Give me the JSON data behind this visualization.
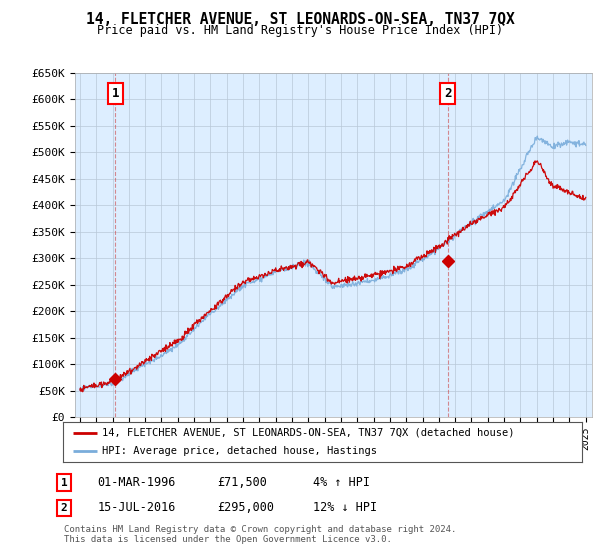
{
  "title": "14, FLETCHER AVENUE, ST LEONARDS-ON-SEA, TN37 7QX",
  "subtitle": "Price paid vs. HM Land Registry's House Price Index (HPI)",
  "ylim": [
    0,
    650000
  ],
  "yticks": [
    0,
    50000,
    100000,
    150000,
    200000,
    250000,
    300000,
    350000,
    400000,
    450000,
    500000,
    550000,
    600000,
    650000
  ],
  "ytick_labels": [
    "£0",
    "£50K",
    "£100K",
    "£150K",
    "£200K",
    "£250K",
    "£300K",
    "£350K",
    "£400K",
    "£450K",
    "£500K",
    "£550K",
    "£600K",
    "£650K"
  ],
  "sale1_x": 1996.17,
  "sale1_price": 71500,
  "sale1_label": "1",
  "sale1_date": "01-MAR-1996",
  "sale1_price_str": "£71,500",
  "sale1_hpi": "4% ↑ HPI",
  "sale2_x": 2016.54,
  "sale2_price": 295000,
  "sale2_label": "2",
  "sale2_date": "15-JUL-2016",
  "sale2_price_str": "£295,000",
  "sale2_hpi": "12% ↓ HPI",
  "hpi_color": "#7aaddb",
  "price_color": "#cc0000",
  "legend_label1": "14, FLETCHER AVENUE, ST LEONARDS-ON-SEA, TN37 7QX (detached house)",
  "legend_label2": "HPI: Average price, detached house, Hastings",
  "footnote": "Contains HM Land Registry data © Crown copyright and database right 2024.\nThis data is licensed under the Open Government Licence v3.0.",
  "bg_color": "#ffffff",
  "grid_color": "#b8c8d8",
  "plot_bg_color": "#ddeeff",
  "vline_color": "#cc4444"
}
